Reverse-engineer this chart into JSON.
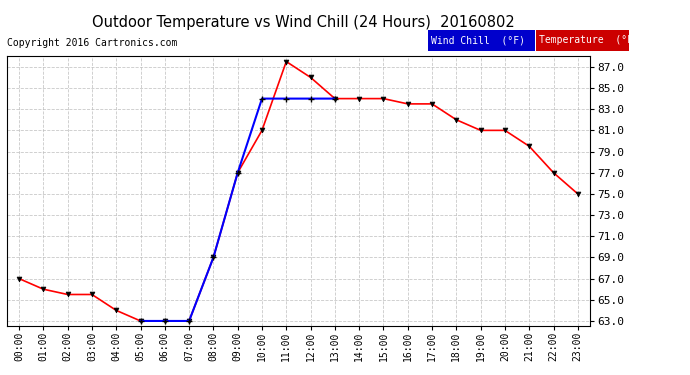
{
  "title": "Outdoor Temperature vs Wind Chill (24 Hours)  20160802",
  "copyright": "Copyright 2016 Cartronics.com",
  "x_labels": [
    "00:00",
    "01:00",
    "02:00",
    "03:00",
    "04:00",
    "05:00",
    "06:00",
    "07:00",
    "08:00",
    "09:00",
    "10:00",
    "11:00",
    "12:00",
    "13:00",
    "14:00",
    "15:00",
    "16:00",
    "17:00",
    "18:00",
    "19:00",
    "20:00",
    "21:00",
    "22:00",
    "23:00"
  ],
  "temperature": [
    67.0,
    66.0,
    65.5,
    65.5,
    64.0,
    63.0,
    63.0,
    63.0,
    69.0,
    77.0,
    81.0,
    87.5,
    86.0,
    84.0,
    84.0,
    84.0,
    83.5,
    83.5,
    82.0,
    81.0,
    81.0,
    79.5,
    77.0,
    75.0
  ],
  "wind_chill": [
    null,
    null,
    null,
    null,
    null,
    63.0,
    63.0,
    63.0,
    69.0,
    77.0,
    84.0,
    84.0,
    84.0,
    84.0,
    null,
    null,
    null,
    null,
    null,
    null,
    null,
    null,
    null,
    null
  ],
  "temp_color": "#ff0000",
  "wind_chill_color": "#0000ff",
  "bg_color": "#ffffff",
  "grid_color": "#bbbbbb",
  "ylim_min": 62.5,
  "ylim_max": 88.0,
  "yticks": [
    63.0,
    65.0,
    67.0,
    69.0,
    71.0,
    73.0,
    75.0,
    77.0,
    79.0,
    81.0,
    83.0,
    85.0,
    87.0
  ],
  "legend_wind_chill_bg": "#0000cc",
  "legend_temp_bg": "#cc0000",
  "legend_wind_chill_text": "Wind Chill  (°F)",
  "legend_temp_text": "Temperature  (°F)"
}
